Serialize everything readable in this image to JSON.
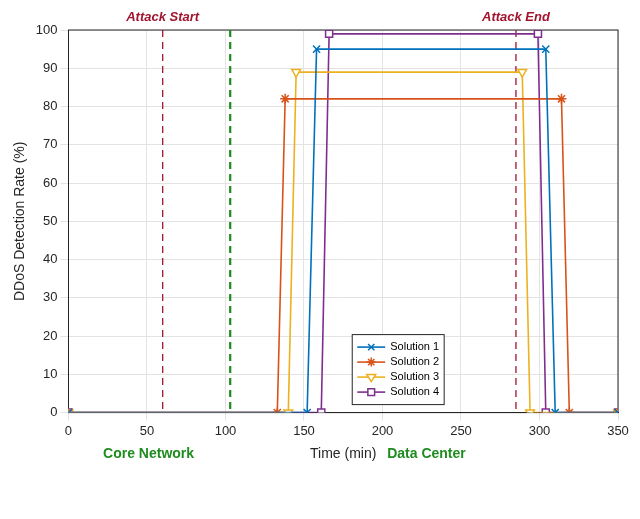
{
  "chart_data": {
    "type": "line",
    "xlabel": "Time (min)",
    "ylabel": "DDoS Detection Rate (%)",
    "xlim": [
      0,
      350
    ],
    "xticks": [
      0,
      50,
      100,
      150,
      200,
      250,
      300,
      350
    ],
    "ylim": [
      0,
      100
    ],
    "yticks": [
      0,
      10,
      20,
      30,
      40,
      50,
      60,
      70,
      80,
      90,
      100
    ],
    "grid": true,
    "legend": "bottom",
    "series": [
      {
        "name": "Solution 1",
        "color": "#0072bd",
        "marker": "x",
        "x": [
          0,
          152,
          158,
          304,
          310,
          350
        ],
        "values": [
          0,
          0,
          95,
          95,
          0,
          0
        ]
      },
      {
        "name": "Solution 2",
        "color": "#d95319",
        "marker": "asterisk",
        "x": [
          0,
          133,
          138,
          314,
          319,
          350
        ],
        "values": [
          0,
          0,
          82,
          82,
          0,
          0
        ]
      },
      {
        "name": "Solution 3",
        "color": "#edb120",
        "marker": "triangle_down",
        "x": [
          0,
          140,
          145,
          289,
          294,
          350
        ],
        "values": [
          0,
          0,
          89,
          89,
          0,
          0
        ]
      },
      {
        "name": "Solution 4",
        "color": "#7e2f8e",
        "marker": "square",
        "x": [
          0,
          161,
          166,
          299,
          304,
          350
        ],
        "values": [
          0,
          0,
          99,
          99,
          0,
          0
        ]
      }
    ],
    "annotations": [
      {
        "text": "Attack Start",
        "x": 60,
        "color": "#a2142f",
        "line_style": "dashed"
      },
      {
        "text": "Attack End",
        "x": 285,
        "color": "#a2142f",
        "line_style": "dashed"
      }
    ],
    "lines": [
      {
        "x": 103,
        "color": "#1e8c1e",
        "line_style": "dashed"
      }
    ],
    "region_labels": [
      {
        "text": "Core Network",
        "x": 51,
        "color": "#1e8c1e"
      },
      {
        "text": "Data Center",
        "x": 228,
        "color": "#1e8c1e"
      }
    ]
  }
}
